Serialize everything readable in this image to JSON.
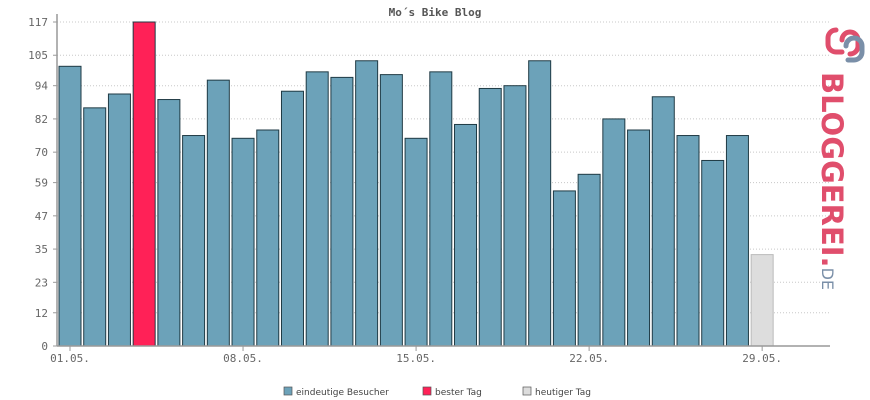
{
  "chart_data": {
    "type": "bar",
    "title": "Mo´s Bike Blog",
    "xlabel": "",
    "ylabel": "",
    "ylim": [
      0,
      117
    ],
    "y_ticks": [
      "0",
      "12",
      "23",
      "35",
      "47",
      "59",
      "70",
      "82",
      "94",
      "105",
      "117"
    ],
    "x_tick_labels": [
      {
        "index": 0,
        "label": "01.05."
      },
      {
        "index": 7,
        "label": "08.05."
      },
      {
        "index": 14,
        "label": "15.05."
      },
      {
        "index": 21,
        "label": "22.05."
      },
      {
        "index": 28,
        "label": "29.05."
      }
    ],
    "grid": true,
    "legend_position": "bottom-center",
    "series": [
      {
        "name": "eindeutige Besucher",
        "color": "#6ca2b9",
        "values": [
          101,
          86,
          91,
          117,
          89,
          76,
          96,
          75,
          78,
          92,
          99,
          97,
          103,
          98,
          75,
          99,
          80,
          93,
          94,
          103,
          56,
          62,
          82,
          78,
          90,
          76,
          67,
          76,
          33
        ]
      }
    ],
    "best_day_index": 3,
    "best_day_color": "#ff2157",
    "today_index": 28,
    "today_color": "#dddddd",
    "legend": [
      {
        "label": "eindeutige Besucher",
        "color": "#6ca2b9"
      },
      {
        "label": "bester Tag",
        "color": "#ff2157"
      },
      {
        "label": "heutiger Tag",
        "color": "#dddddd"
      }
    ]
  },
  "brand": {
    "text": "BLOGGEREI.",
    "suffix": "DE",
    "colors": {
      "main": "#e04e6c",
      "suffix": "#7a8fa8"
    }
  }
}
